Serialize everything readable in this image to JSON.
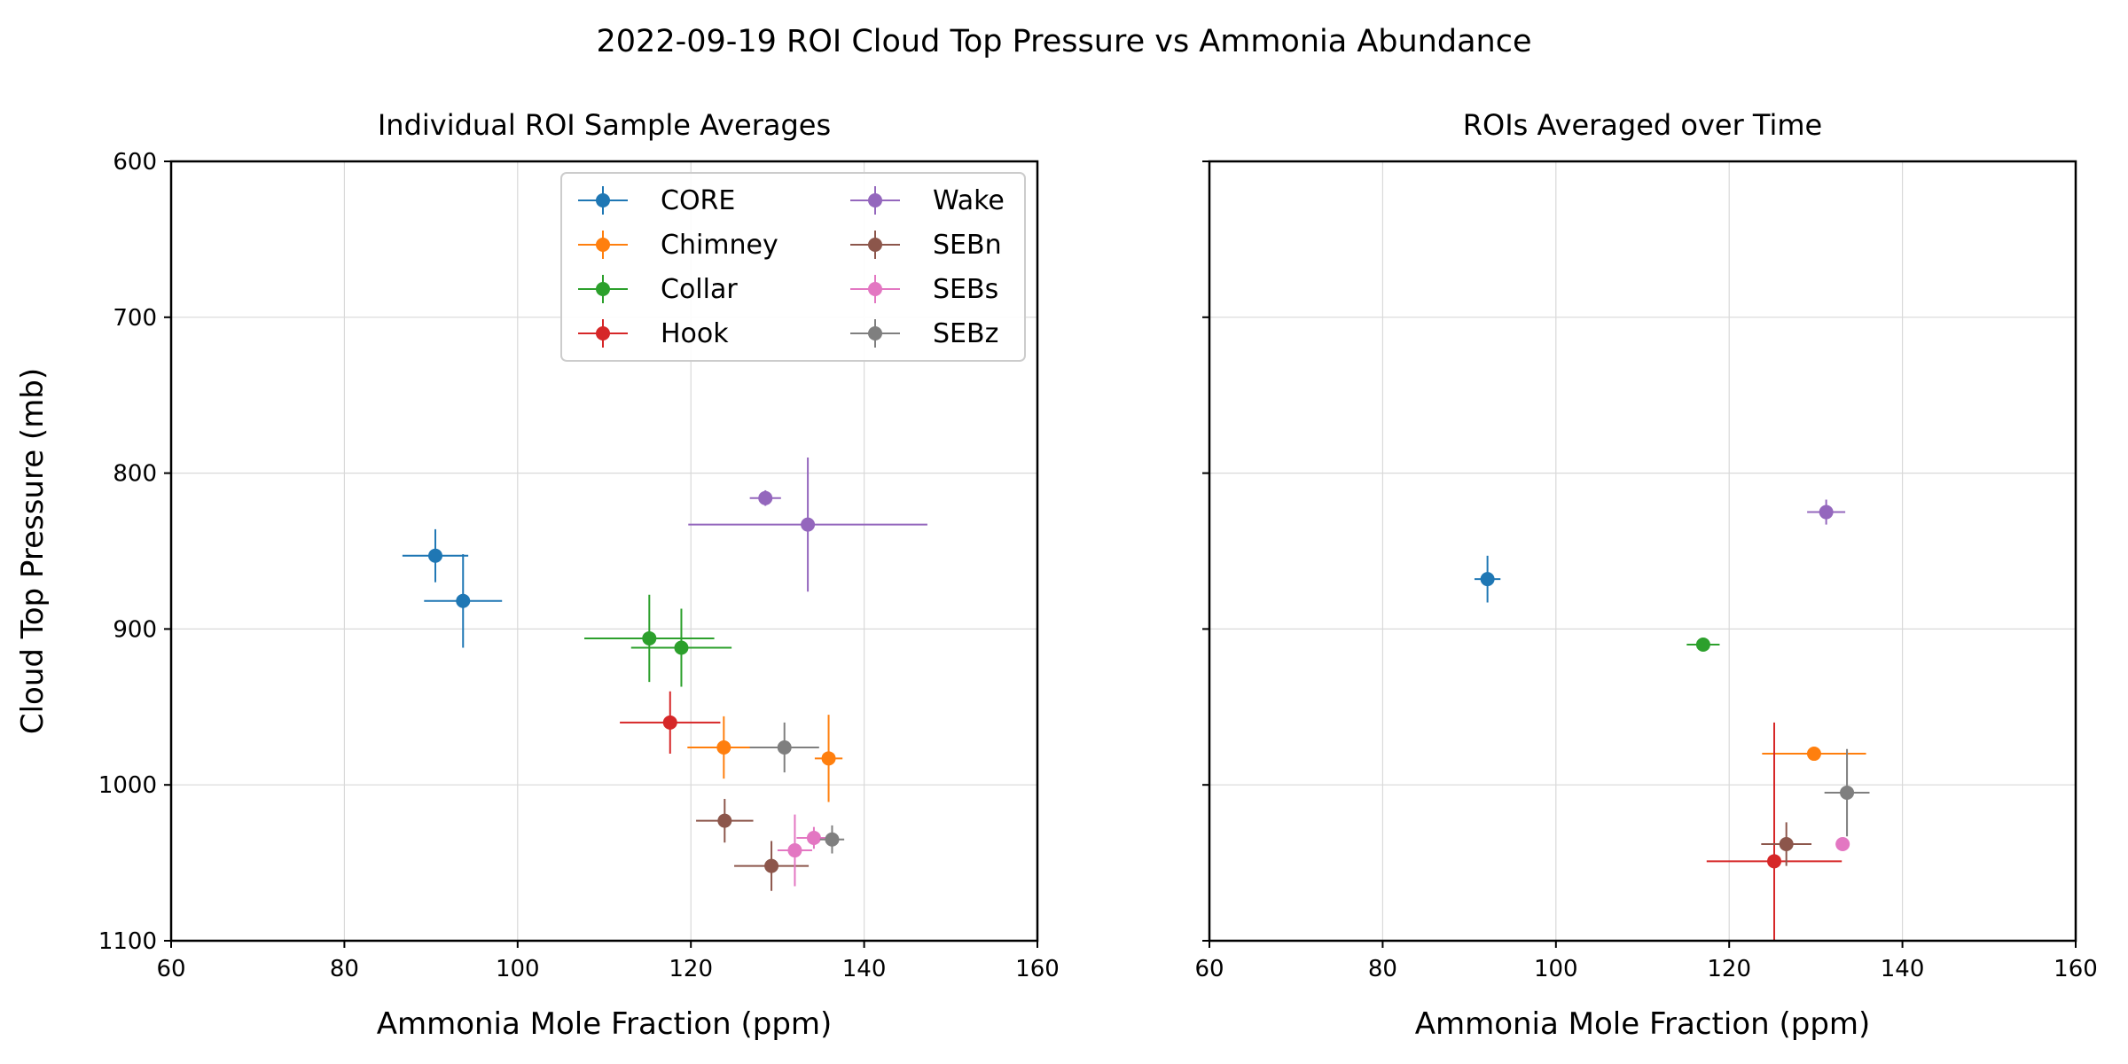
{
  "figure": {
    "suptitle": "2022-09-19 ROI Cloud Top Pressure vs Ammonia Abundance"
  },
  "colors": {
    "CORE": "#1f77b4",
    "Chimney": "#ff7f0e",
    "Collar": "#2ca02c",
    "Hook": "#d62728",
    "Wake": "#9467bd",
    "SEBn": "#8c564b",
    "SEBs": "#e377c2",
    "SEBz": "#7f7f7f",
    "grid": "#d9d9d9",
    "axes": "#000000"
  },
  "chart_data": [
    {
      "type": "scatter",
      "error_bars": true,
      "title": "Individual ROI Sample Averages",
      "xlabel": "Ammonia Mole Fraction (ppm)",
      "ylabel": "Cloud Top Pressure (mb)",
      "xlim": [
        60,
        160
      ],
      "ylim": [
        1100,
        600
      ],
      "y_inverted": true,
      "xticks": [
        60,
        80,
        100,
        120,
        140,
        160
      ],
      "yticks": [
        600,
        700,
        800,
        900,
        1000,
        1100
      ],
      "grid": true,
      "legend": {
        "placement": "top-right",
        "ncol": 2
      },
      "series": [
        {
          "name": "CORE",
          "points": [
            {
              "x": 90.5,
              "y": 853,
              "xerr": 3.8,
              "yerr": 17
            },
            {
              "x": 93.7,
              "y": 882,
              "xerr": 4.5,
              "yerr": 30
            }
          ]
        },
        {
          "name": "Chimney",
          "points": [
            {
              "x": 123.8,
              "y": 976,
              "xerr": 4.2,
              "yerr": 20
            },
            {
              "x": 135.9,
              "y": 983,
              "xerr": 1.6,
              "yerr": 28
            }
          ]
        },
        {
          "name": "Collar",
          "points": [
            {
              "x": 115.2,
              "y": 906,
              "xerr": 7.5,
              "yerr": 28
            },
            {
              "x": 118.9,
              "y": 912,
              "xerr": 5.8,
              "yerr": 25
            }
          ]
        },
        {
          "name": "Hook",
          "points": [
            {
              "x": 117.6,
              "y": 960,
              "xerr": 5.8,
              "yerr": 20
            }
          ]
        },
        {
          "name": "Wake",
          "points": [
            {
              "x": 128.6,
              "y": 816,
              "xerr": 1.8,
              "yerr": 5
            },
            {
              "x": 133.5,
              "y": 833,
              "xerr": 13.8,
              "yerr": 43
            }
          ]
        },
        {
          "name": "SEBn",
          "points": [
            {
              "x": 123.9,
              "y": 1023,
              "xerr": 3.3,
              "yerr": 14
            },
            {
              "x": 129.3,
              "y": 1052,
              "xerr": 4.3,
              "yerr": 16
            }
          ]
        },
        {
          "name": "SEBs",
          "points": [
            {
              "x": 134.2,
              "y": 1034,
              "xerr": 2.0,
              "yerr": 7
            },
            {
              "x": 132.0,
              "y": 1042,
              "xerr": 2.0,
              "yerr": 23
            }
          ]
        },
        {
          "name": "SEBz",
          "points": [
            {
              "x": 130.8,
              "y": 976,
              "xerr": 4.0,
              "yerr": 16
            },
            {
              "x": 136.3,
              "y": 1035,
              "xerr": 1.4,
              "yerr": 9
            }
          ]
        }
      ]
    },
    {
      "type": "scatter",
      "error_bars": true,
      "title": "ROIs Averaged over Time",
      "xlabel": "Ammonia Mole Fraction (ppm)",
      "ylabel": "",
      "xlim": [
        60,
        160
      ],
      "ylim": [
        1100,
        600
      ],
      "y_inverted": true,
      "xticks": [
        60,
        80,
        100,
        120,
        140,
        160
      ],
      "yticks": [
        600,
        700,
        800,
        900,
        1000,
        1100
      ],
      "ytick_labels_visible": false,
      "grid": true,
      "series": [
        {
          "name": "CORE",
          "points": [
            {
              "x": 92.1,
              "y": 868,
              "xerr": 1.5,
              "yerr": 15
            }
          ]
        },
        {
          "name": "Chimney",
          "points": [
            {
              "x": 129.8,
              "y": 980,
              "xerr": 6.0,
              "yerr": 4
            }
          ]
        },
        {
          "name": "Collar",
          "points": [
            {
              "x": 117.0,
              "y": 910,
              "xerr": 1.9,
              "yerr": 3
            }
          ]
        },
        {
          "name": "Hook",
          "points": [
            {
              "x": 125.2,
              "y": 1049,
              "xerr": 7.8,
              "yerr": 89
            }
          ]
        },
        {
          "name": "Wake",
          "points": [
            {
              "x": 131.2,
              "y": 825,
              "xerr": 2.2,
              "yerr": 8
            }
          ]
        },
        {
          "name": "SEBn",
          "points": [
            {
              "x": 126.6,
              "y": 1038,
              "xerr": 2.9,
              "yerr": 14
            }
          ]
        },
        {
          "name": "SEBs",
          "points": [
            {
              "x": 133.1,
              "y": 1038,
              "xerr": 0.8,
              "yerr": 3
            }
          ]
        },
        {
          "name": "SEBz",
          "points": [
            {
              "x": 133.6,
              "y": 1005,
              "xerr": 2.6,
              "yerr": 28
            }
          ]
        }
      ]
    }
  ]
}
